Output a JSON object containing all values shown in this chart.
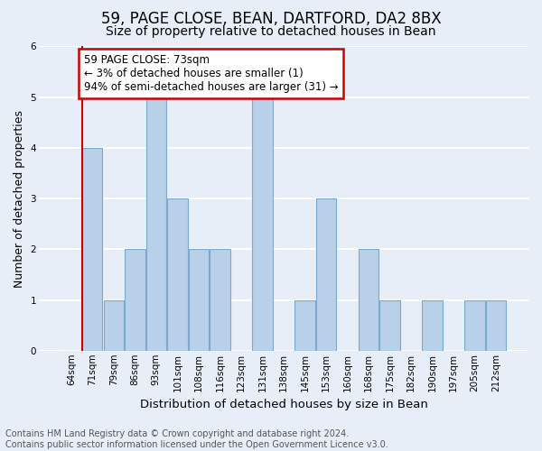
{
  "title1": "59, PAGE CLOSE, BEAN, DARTFORD, DA2 8BX",
  "title2": "Size of property relative to detached houses in Bean",
  "xlabel": "Distribution of detached houses by size in Bean",
  "ylabel": "Number of detached properties",
  "categories": [
    "64sqm",
    "71sqm",
    "79sqm",
    "86sqm",
    "93sqm",
    "101sqm",
    "108sqm",
    "116sqm",
    "123sqm",
    "131sqm",
    "138sqm",
    "145sqm",
    "153sqm",
    "160sqm",
    "168sqm",
    "175sqm",
    "182sqm",
    "190sqm",
    "197sqm",
    "205sqm",
    "212sqm"
  ],
  "values": [
    0,
    4,
    1,
    2,
    5,
    3,
    2,
    2,
    0,
    5,
    0,
    1,
    3,
    0,
    2,
    1,
    0,
    1,
    0,
    1,
    1
  ],
  "bar_color": "#b8d0e8",
  "bar_edge_color": "#7aaacf",
  "highlight_index": 1,
  "highlight_line_color": "#cc0000",
  "annotation_text": "59 PAGE CLOSE: 73sqm\n← 3% of detached houses are smaller (1)\n94% of semi-detached houses are larger (31) →",
  "annotation_box_facecolor": "#ffffff",
  "annotation_box_edge_color": "#cc0000",
  "ylim": [
    0,
    6
  ],
  "yticks": [
    0,
    1,
    2,
    3,
    4,
    5,
    6
  ],
  "footer_text": "Contains HM Land Registry data © Crown copyright and database right 2024.\nContains public sector information licensed under the Open Government Licence v3.0.",
  "bg_color": "#e8eef8",
  "plot_bg_color": "#e8eef8",
  "grid_color": "#ffffff",
  "title1_fontsize": 12,
  "title2_fontsize": 10,
  "xlabel_fontsize": 9.5,
  "ylabel_fontsize": 9,
  "tick_fontsize": 7.5,
  "footer_fontsize": 7,
  "annotation_fontsize": 8.5
}
